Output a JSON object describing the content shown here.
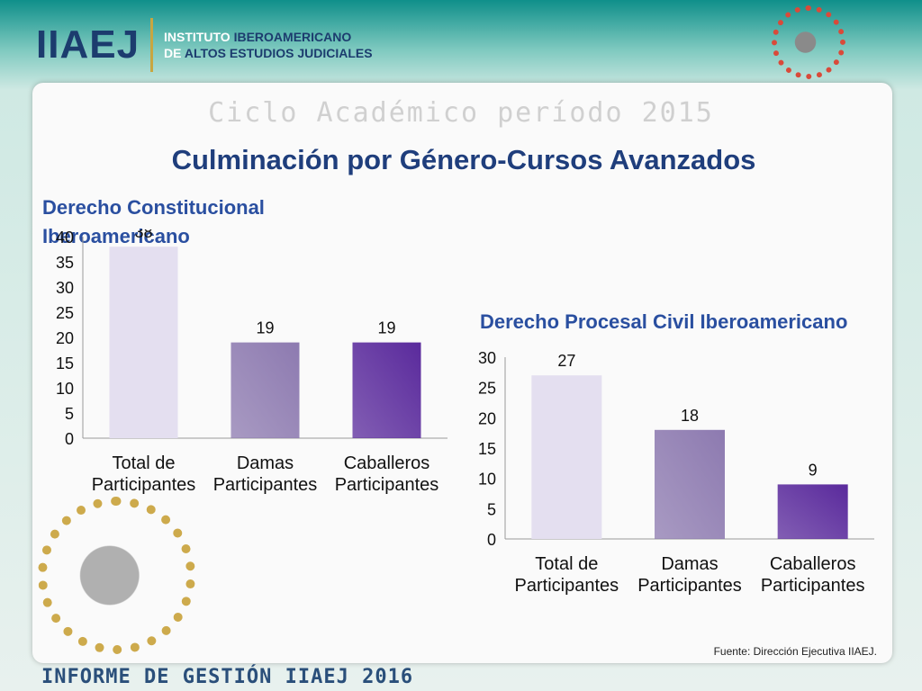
{
  "header": {
    "logo_text": "IIAEJ",
    "inst_line1_a": "INSTITUTO",
    "inst_line1_b": "IBEROAMERICANO",
    "inst_line2_a": "DE",
    "inst_line2_b": "ALTOS ESTUDIOS JUDICIALES"
  },
  "slide": {
    "cycle": "Ciclo Académico período 2015",
    "title": "Culminación por Género-Cursos Avanzados",
    "source": "Fuente: Dirección Ejecutiva IIAEJ.",
    "footer": "INFORME DE GESTIÓN IIAEJ 2016"
  },
  "chart_data": [
    {
      "type": "bar",
      "title": "Derecho Constitucional Iberoamericano",
      "categories": [
        "Total de Participantes",
        "Damas Participantes",
        "Caballeros Participantes"
      ],
      "values": [
        38,
        19,
        19
      ],
      "ylim": [
        0,
        40
      ],
      "yticks": [
        0,
        5,
        10,
        15,
        20,
        25,
        30,
        35,
        40
      ],
      "grid": false,
      "colors": [
        "#e4dff0",
        "#8d7ab0",
        "#5a2a9c"
      ]
    },
    {
      "type": "bar",
      "title": "Derecho Procesal Civil Iberoamericano",
      "categories": [
        "Total de Participantes",
        "Damas Participantes",
        "Caballeros Participantes"
      ],
      "values": [
        27,
        18,
        9
      ],
      "ylim": [
        0,
        30
      ],
      "yticks": [
        0,
        5,
        10,
        15,
        20,
        25,
        30
      ],
      "grid": false,
      "colors": [
        "#e4dff0",
        "#8d7ab0",
        "#5a2a9c"
      ]
    }
  ]
}
